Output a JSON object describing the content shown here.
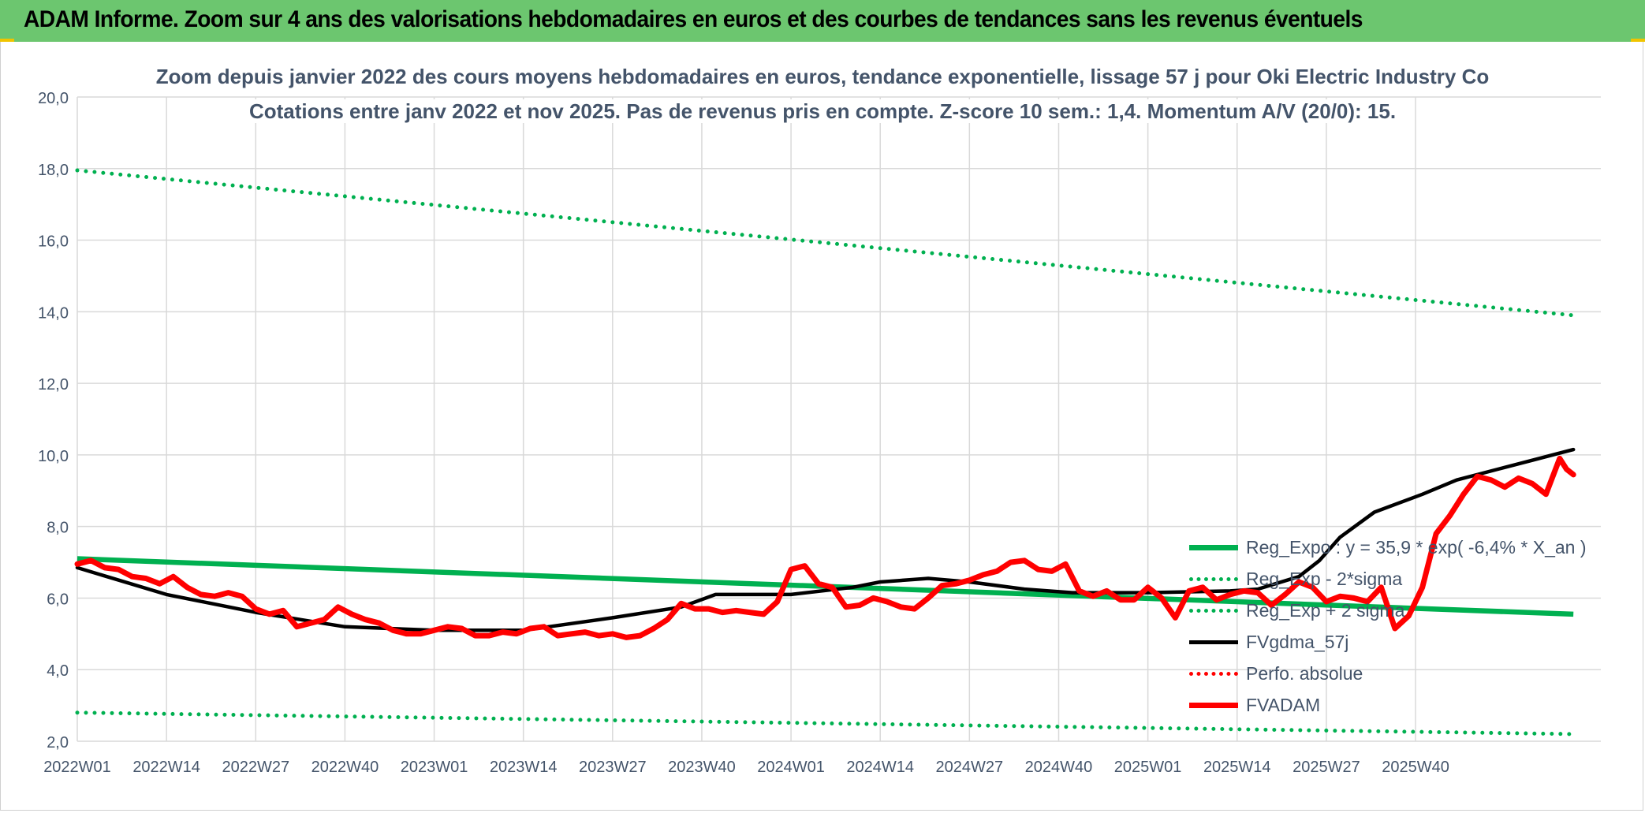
{
  "banner": {
    "title": "ADAM Informe. Zoom sur 4 ans des valorisations hebdomadaires en euros et des courbes de tendances sans les revenus éventuels"
  },
  "chart_data": {
    "type": "line",
    "title_line1": "Zoom depuis janvier 2022 des cours moyens hebdomadaires en euros, tendance exponentielle, lissage 57 j pour Oki Electric Industry Co",
    "title_line2": "Cotations entre janv 2022 et nov 2025. Pas de revenus pris en compte. Z-score 10 sem.: 1,4. Momentum A/V (20/0): 15.",
    "ylim": [
      2,
      20
    ],
    "y_ticks": [
      "20,0",
      "18,0",
      "16,0",
      "14,0",
      "12,0",
      "10,0",
      "8,0",
      "6,0",
      "4,0",
      "2,0"
    ],
    "x_ticks": [
      "2022W01",
      "2022W14",
      "2022W27",
      "2022W40",
      "2023W01",
      "2023W14",
      "2023W27",
      "2023W40",
      "2024W01",
      "2024W14",
      "2024W27",
      "2024W40",
      "2025W01",
      "2025W14",
      "2025W27",
      "2025W40"
    ],
    "n_weeks": 202,
    "legend": [
      {
        "label": "Reg_Expo : y = 35,9 * exp( -6,4% *  X_an )",
        "color": "#00b050",
        "style": "solid"
      },
      {
        "label": "Reg_Exp - 2*sigma",
        "color": "#00b050",
        "style": "dotted"
      },
      {
        "label": "Reg_Exp + 2 sigma",
        "color": "#00b050",
        "style": "dotted"
      },
      {
        "label": "FVgdma_57j",
        "color": "#000000",
        "style": "solid"
      },
      {
        "label": "Perfo. absolue",
        "color": "#ff0000",
        "style": "dotted"
      },
      {
        "label": "FVADAM",
        "color": "#ff0000",
        "style": "solid"
      }
    ],
    "series": [
      {
        "name": "Reg_Expo",
        "start": 7.1,
        "end": 5.55,
        "color": "#00b050"
      },
      {
        "name": "Reg_Exp + 2 sigma",
        "start": 17.95,
        "end": 13.9,
        "color": "#00b050"
      },
      {
        "name": "Reg_Exp - 2*sigma",
        "start": 2.8,
        "end": 2.2,
        "color": "#00b050"
      },
      {
        "name": "FVgdma_57j",
        "color": "#000000",
        "points": [
          [
            0,
            6.85
          ],
          [
            13,
            6.1
          ],
          [
            26,
            5.6
          ],
          [
            39,
            5.2
          ],
          [
            52,
            5.1
          ],
          [
            65,
            5.1
          ],
          [
            78,
            5.45
          ],
          [
            88,
            5.75
          ],
          [
            93,
            6.1
          ],
          [
            104,
            6.1
          ],
          [
            113,
            6.3
          ],
          [
            117,
            6.45
          ],
          [
            124,
            6.55
          ],
          [
            130,
            6.45
          ],
          [
            138,
            6.25
          ],
          [
            145,
            6.15
          ],
          [
            156,
            6.15
          ],
          [
            168,
            6.2
          ],
          [
            172,
            6.25
          ],
          [
            178,
            6.6
          ],
          [
            181,
            7.05
          ],
          [
            184,
            7.7
          ],
          [
            189,
            8.4
          ],
          [
            196,
            8.9
          ],
          [
            201,
            9.3
          ],
          [
            207,
            9.6
          ],
          [
            212,
            9.85
          ],
          [
            216,
            10.05
          ],
          [
            218,
            10.15
          ]
        ]
      },
      {
        "name": "FVADAM",
        "color": "#ff0000",
        "points": [
          [
            0,
            6.95
          ],
          [
            2,
            7.05
          ],
          [
            4,
            6.85
          ],
          [
            6,
            6.8
          ],
          [
            8,
            6.6
          ],
          [
            10,
            6.55
          ],
          [
            12,
            6.4
          ],
          [
            14,
            6.6
          ],
          [
            16,
            6.3
          ],
          [
            18,
            6.1
          ],
          [
            20,
            6.05
          ],
          [
            22,
            6.15
          ],
          [
            24,
            6.05
          ],
          [
            26,
            5.7
          ],
          [
            28,
            5.55
          ],
          [
            30,
            5.65
          ],
          [
            32,
            5.2
          ],
          [
            34,
            5.3
          ],
          [
            36,
            5.4
          ],
          [
            38,
            5.75
          ],
          [
            40,
            5.55
          ],
          [
            42,
            5.4
          ],
          [
            44,
            5.3
          ],
          [
            46,
            5.1
          ],
          [
            48,
            5.0
          ],
          [
            50,
            5.0
          ],
          [
            52,
            5.1
          ],
          [
            54,
            5.2
          ],
          [
            56,
            5.15
          ],
          [
            58,
            4.95
          ],
          [
            60,
            4.95
          ],
          [
            62,
            5.05
          ],
          [
            64,
            5.0
          ],
          [
            66,
            5.15
          ],
          [
            68,
            5.2
          ],
          [
            70,
            4.95
          ],
          [
            72,
            5.0
          ],
          [
            74,
            5.05
          ],
          [
            76,
            4.95
          ],
          [
            78,
            5.0
          ],
          [
            80,
            4.9
          ],
          [
            82,
            4.95
          ],
          [
            84,
            5.15
          ],
          [
            86,
            5.4
          ],
          [
            88,
            5.85
          ],
          [
            90,
            5.7
          ],
          [
            92,
            5.7
          ],
          [
            94,
            5.6
          ],
          [
            96,
            5.65
          ],
          [
            98,
            5.6
          ],
          [
            100,
            5.55
          ],
          [
            102,
            5.9
          ],
          [
            104,
            6.8
          ],
          [
            106,
            6.9
          ],
          [
            108,
            6.4
          ],
          [
            110,
            6.3
          ],
          [
            112,
            5.75
          ],
          [
            114,
            5.8
          ],
          [
            116,
            6.0
          ],
          [
            118,
            5.9
          ],
          [
            120,
            5.75
          ],
          [
            122,
            5.7
          ],
          [
            124,
            6.0
          ],
          [
            126,
            6.35
          ],
          [
            128,
            6.4
          ],
          [
            130,
            6.5
          ],
          [
            132,
            6.65
          ],
          [
            134,
            6.75
          ],
          [
            136,
            7.0
          ],
          [
            138,
            7.05
          ],
          [
            140,
            6.8
          ],
          [
            142,
            6.75
          ],
          [
            144,
            6.95
          ],
          [
            146,
            6.2
          ],
          [
            148,
            6.05
          ],
          [
            150,
            6.2
          ],
          [
            152,
            5.95
          ],
          [
            154,
            5.95
          ],
          [
            156,
            6.3
          ],
          [
            158,
            6.0
          ],
          [
            160,
            5.45
          ],
          [
            162,
            6.2
          ],
          [
            164,
            6.3
          ],
          [
            166,
            5.95
          ],
          [
            168,
            6.1
          ],
          [
            170,
            6.2
          ],
          [
            172,
            6.15
          ],
          [
            174,
            5.8
          ],
          [
            176,
            6.1
          ],
          [
            178,
            6.45
          ],
          [
            180,
            6.3
          ],
          [
            182,
            5.9
          ],
          [
            184,
            6.05
          ],
          [
            186,
            6.0
          ],
          [
            188,
            5.9
          ],
          [
            190,
            6.3
          ],
          [
            192,
            5.15
          ],
          [
            194,
            5.5
          ],
          [
            196,
            6.3
          ],
          [
            198,
            7.8
          ],
          [
            200,
            8.3
          ],
          [
            202,
            8.9
          ],
          [
            204,
            9.4
          ],
          [
            206,
            9.3
          ],
          [
            208,
            9.1
          ],
          [
            210,
            9.35
          ],
          [
            212,
            9.2
          ],
          [
            214,
            8.9
          ],
          [
            216,
            9.9
          ],
          [
            217,
            9.6
          ],
          [
            218,
            9.45
          ]
        ]
      }
    ]
  }
}
